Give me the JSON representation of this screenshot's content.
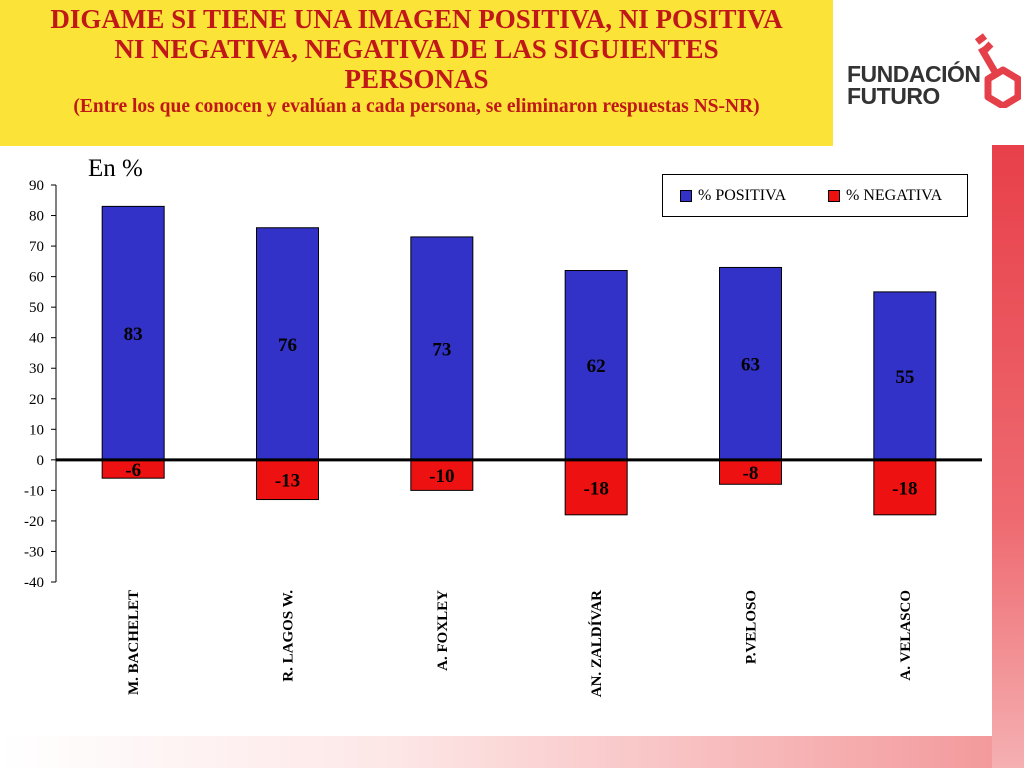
{
  "title": {
    "line1": "DIGAME SI TIENE UNA IMAGEN POSITIVA, NI POSITIVA",
    "line2": "NI NEGATIVA, NEGATIVA DE LAS SIGUIENTES",
    "line3": "PERSONAS",
    "subtitle": "(Entre los que conocen y evalúan a cada persona, se eliminaron respuestas NS-NR)"
  },
  "logo": {
    "line1": "FUNDACIÓN",
    "line2": "FUTURO"
  },
  "unit_label": "En %",
  "colors": {
    "title_bg": "#fbe338",
    "title_text": "#c01818",
    "positive": "#3232c8",
    "negative": "#ee1111",
    "logo_key": "#e5404a"
  },
  "chart_data": {
    "type": "bar",
    "categories": [
      "M. BACHELET",
      "R. LAGOS W.",
      "A. FOXLEY",
      "AN. ZALDÍVAR",
      "P.VELOSO",
      "A. VELASCO"
    ],
    "series": [
      {
        "name": "% POSITIVA",
        "values": [
          83,
          76,
          73,
          62,
          63,
          55
        ],
        "color": "#3232c8"
      },
      {
        "name": "% NEGATIVA",
        "values": [
          -6,
          -13,
          -10,
          -18,
          -8,
          -18
        ],
        "color": "#ee1111"
      }
    ],
    "data_labels": {
      "positive": [
        "83",
        "76",
        "73",
        "62",
        "63",
        "55"
      ],
      "negative": [
        "-6",
        "-13",
        "-10",
        "-18",
        "-8",
        "-18"
      ]
    },
    "ylim": [
      -40,
      90
    ],
    "yticks": [
      90,
      80,
      70,
      60,
      50,
      40,
      30,
      20,
      10,
      0,
      -10,
      -20,
      -30,
      -40
    ],
    "ytick_labels": [
      "90",
      "80",
      "70",
      "60",
      "50",
      "40",
      "30",
      "20",
      "10",
      "0",
      "-10",
      "-20",
      "-30",
      "-40"
    ],
    "xlabel": "",
    "ylabel": "En %",
    "grid": false,
    "legend_position": "top-right",
    "stacked": true
  }
}
